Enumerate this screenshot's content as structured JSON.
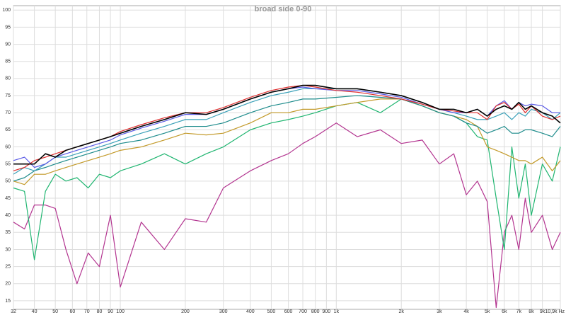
{
  "chart_data": {
    "type": "line",
    "title": "broad side 0-90",
    "xscale": "log",
    "grid": true,
    "x": [
      32,
      36,
      40,
      45,
      50,
      56,
      63,
      71,
      80,
      90,
      100,
      125,
      160,
      200,
      250,
      300,
      400,
      500,
      600,
      700,
      800,
      1000,
      1250,
      1600,
      2000,
      2500,
      3000,
      3500,
      4000,
      4500,
      5000,
      5500,
      6000,
      6500,
      7000,
      7500,
      8000,
      9000,
      10000,
      10900
    ],
    "xlim": [
      32,
      10900
    ],
    "xticks": [
      32,
      40,
      50,
      60,
      70,
      80,
      90,
      100,
      200,
      300,
      400,
      500,
      600,
      700,
      800,
      900,
      {
        "value": 1000,
        "label": "1k"
      },
      {
        "value": 2000,
        "label": "2k"
      },
      {
        "value": 3000,
        "label": "3k"
      },
      {
        "value": 4000,
        "label": "4k"
      },
      {
        "value": 5000,
        "label": "5k"
      },
      {
        "value": 6000,
        "label": "6k"
      },
      {
        "value": 7000,
        "label": "7k"
      },
      {
        "value": 8000,
        "label": "8k"
      },
      {
        "value": 9000,
        "label": "9k"
      },
      {
        "value": 10900,
        "label": "10,9k Hz"
      }
    ],
    "ylim": [
      12.5,
      101.3
    ],
    "yticks": [
      15,
      20,
      25,
      30,
      35,
      40,
      45,
      50,
      55,
      60,
      65,
      70,
      75,
      80,
      85,
      90,
      95,
      100
    ],
    "series": [
      {
        "color": "#b33590",
        "values": [
          38,
          36,
          43,
          43,
          42,
          30,
          20,
          29,
          25,
          40,
          19,
          38,
          30,
          39,
          38,
          48,
          53,
          56,
          58,
          61,
          63,
          67,
          63,
          65,
          61,
          62,
          55,
          58,
          46,
          50,
          44,
          13,
          35,
          40,
          30,
          45,
          35,
          40,
          30,
          35
        ]
      },
      {
        "color": "#1fb570",
        "values": [
          48,
          47,
          27,
          47,
          52,
          50,
          51,
          48,
          52,
          51,
          53,
          55,
          58,
          55,
          58,
          60,
          65,
          67,
          68,
          69,
          70,
          72,
          73,
          70,
          74,
          72,
          70,
          69,
          67,
          63,
          62,
          45,
          30,
          60,
          45,
          55,
          40,
          55,
          50,
          60
        ]
      },
      {
        "color": "#c39a2a",
        "values": [
          50,
          49,
          52,
          52,
          53,
          54,
          55,
          56,
          57,
          58,
          59,
          60,
          62,
          64,
          63.5,
          64,
          67,
          70,
          70,
          71,
          71,
          72,
          73,
          74,
          74,
          72,
          70,
          69,
          68,
          66,
          60,
          59,
          58,
          57,
          56,
          56,
          55,
          57,
          53,
          56
        ]
      },
      {
        "color": "#1e8c8c",
        "values": [
          50,
          51,
          53,
          54,
          55,
          56,
          57,
          58,
          59,
          60,
          61,
          62,
          64,
          66,
          66,
          67,
          70,
          72,
          73,
          74,
          74,
          74.5,
          75,
          74.5,
          74,
          72,
          70,
          69,
          67,
          66,
          64,
          65,
          66,
          64,
          64,
          65,
          65,
          64,
          63,
          66
        ]
      },
      {
        "color": "#3aa0b8",
        "values": [
          52,
          54,
          53,
          55,
          57,
          57,
          58,
          59,
          60,
          61,
          62,
          64,
          66,
          68,
          68,
          70,
          73,
          75,
          76,
          77,
          77,
          77,
          77,
          76,
          75,
          73,
          71,
          70,
          69,
          68,
          68,
          69,
          70,
          68,
          70,
          69,
          71,
          70,
          68,
          70
        ]
      },
      {
        "color": "#5a5ae6",
        "values": [
          56,
          57,
          54,
          55,
          57,
          58,
          59,
          60,
          61,
          62,
          63.5,
          65.5,
          67.5,
          69.5,
          69.5,
          71,
          74,
          76,
          77,
          77.5,
          77,
          76.5,
          76.5,
          75.5,
          74.5,
          72.5,
          71,
          70,
          70,
          71,
          69,
          72,
          73.5,
          71,
          73,
          72,
          72.5,
          72,
          70,
          70
        ]
      },
      {
        "color": "#e03030",
        "values": [
          53,
          54,
          56,
          57,
          58,
          59,
          60,
          61,
          62,
          63,
          64.5,
          66.5,
          68.5,
          70,
          70,
          71.5,
          74.5,
          76.5,
          77.5,
          78,
          77.5,
          76.5,
          76,
          75,
          74,
          72.5,
          71,
          70.5,
          70,
          70,
          68,
          72,
          73,
          71,
          72.5,
          70,
          72,
          69,
          68,
          69
        ]
      },
      {
        "color": "#000000",
        "values": [
          55,
          55,
          55,
          58,
          57,
          59,
          60,
          61,
          62,
          63,
          64,
          66,
          68,
          70,
          69.5,
          71,
          74,
          76,
          77,
          78,
          78,
          77,
          77,
          76,
          75,
          73,
          71,
          71,
          70,
          71,
          69,
          71,
          72,
          71,
          73,
          71,
          72,
          70,
          69,
          67
        ]
      }
    ]
  }
}
